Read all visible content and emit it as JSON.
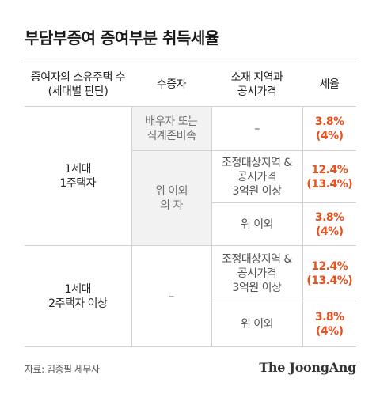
{
  "title": "부담부증여 증여부분 취득세율",
  "table": {
    "headers": [
      "증여자의 소유주택 수\n(세대별 판단)",
      "수증자",
      "소재 지역과\n공시가격",
      "세율"
    ],
    "group1": {
      "label": "1세대\n1주택자",
      "recipient_a": "배우자 또는\n직계존비속",
      "region_a": "–",
      "rate_a": "3.8%\n(4%)",
      "recipient_b": "위 이외\n의 자",
      "region_b1": "조정대상지역 &\n공시가격\n3억원 이상",
      "rate_b1": "12.4%\n(13.4%)",
      "region_b2": "위 이외",
      "rate_b2": "3.8%\n(4%)"
    },
    "group2": {
      "label": "1세대\n2주택자 이상",
      "recipient": "–",
      "region_1": "조정대상지역 &\n공시가격\n3억원 이상",
      "rate_1": "12.4%\n(13.4%)",
      "region_2": "위 이외",
      "rate_2": "3.8%\n(4%)"
    }
  },
  "footer": {
    "source": "자료: 김종필 세무사",
    "brand": "The JoongAng"
  },
  "colors": {
    "rate": "#e8501c",
    "grey_cell": "#f2f2f2",
    "rule": "#d2d2d2"
  }
}
